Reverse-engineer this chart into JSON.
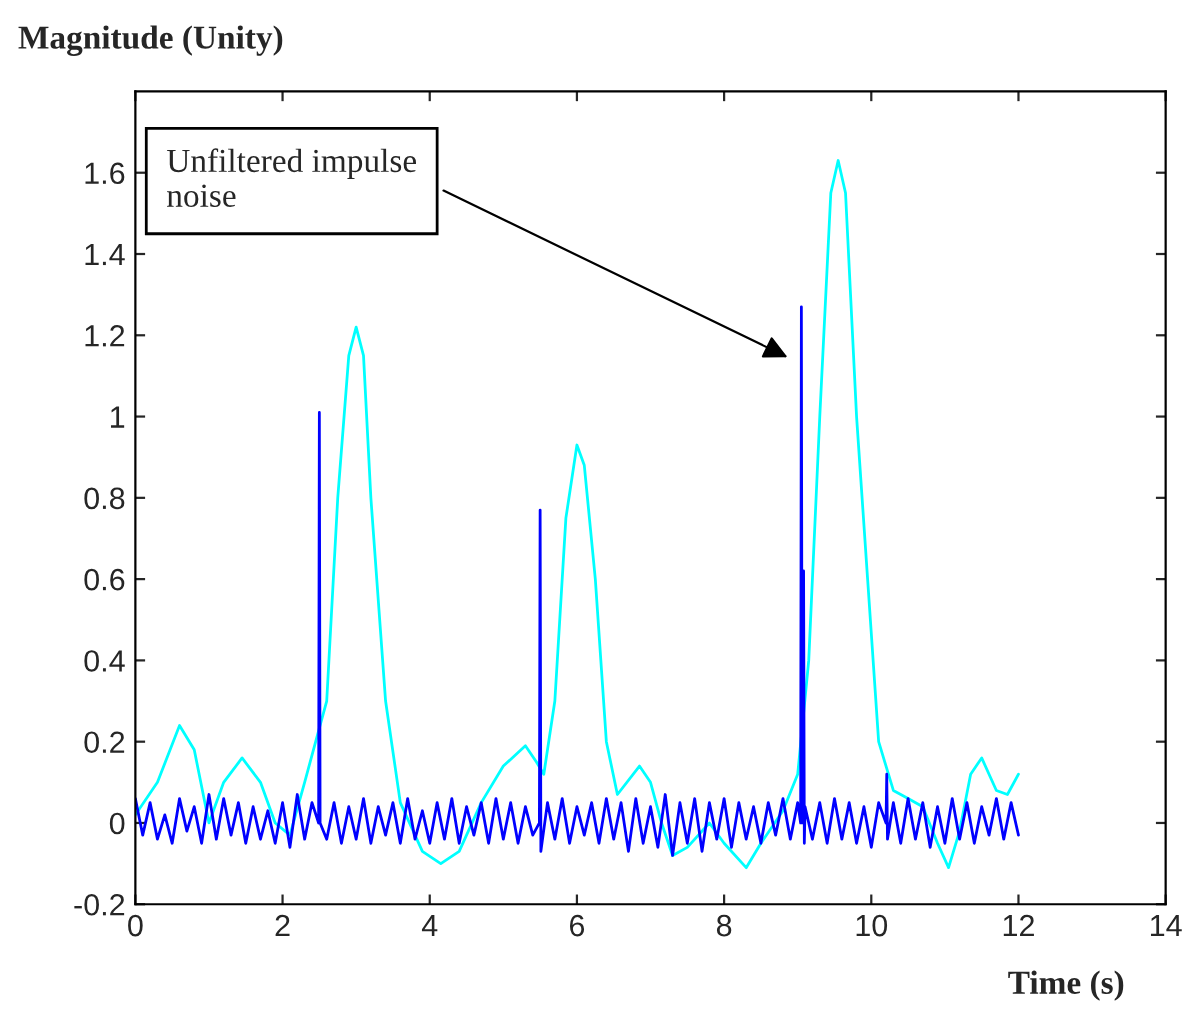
{
  "chart_data": {
    "type": "line",
    "xlabel": "Time (s)",
    "ylabel": "Magnitude (Unity)",
    "xlim": [
      0,
      14
    ],
    "ylim": [
      -0.2,
      1.8
    ],
    "xticks": [
      0,
      2,
      4,
      6,
      8,
      10,
      12,
      14
    ],
    "yticks": [
      -0.2,
      0,
      0.2,
      0.4,
      0.6,
      0.8,
      1,
      1.2,
      1.4,
      1.6
    ],
    "grid": false,
    "legend": false,
    "marker": "none",
    "line_style": "solid",
    "annotations": [
      {
        "text": "Unfiltered impulse\nnoise",
        "x": 8.93,
        "y": 1.14
      }
    ],
    "series": [
      {
        "color": "#00ffff",
        "x": [
          0,
          0.3,
          0.6,
          0.8,
          1.0,
          1.2,
          1.45,
          1.7,
          1.9,
          2.1,
          2.3,
          2.45,
          2.6,
          2.75,
          2.9,
          3.0,
          3.1,
          3.2,
          3.4,
          3.6,
          3.9,
          4.15,
          4.4,
          4.7,
          5.0,
          5.3,
          5.45,
          5.55,
          5.7,
          5.85,
          6.0,
          6.1,
          6.25,
          6.4,
          6.55,
          6.85,
          7.0,
          7.15,
          7.3,
          7.5,
          7.8,
          8.0,
          8.3,
          8.5,
          8.8,
          9.0,
          9.15,
          9.3,
          9.45,
          9.55,
          9.65,
          9.8,
          9.95,
          10.1,
          10.3,
          10.5,
          10.7,
          10.9,
          11.05,
          11.2,
          11.35,
          11.5,
          11.7,
          11.85,
          12.0
        ],
        "values": [
          0.02,
          0.1,
          0.24,
          0.18,
          0.0,
          0.1,
          0.16,
          0.1,
          0.0,
          -0.03,
          0.1,
          0.2,
          0.3,
          0.8,
          1.15,
          1.22,
          1.15,
          0.8,
          0.3,
          0.05,
          -0.07,
          -0.1,
          -0.07,
          0.05,
          0.14,
          0.19,
          0.15,
          0.12,
          0.3,
          0.75,
          0.93,
          0.88,
          0.6,
          0.2,
          0.07,
          0.14,
          0.1,
          0.0,
          -0.08,
          -0.06,
          0.0,
          -0.05,
          -0.11,
          -0.05,
          0.03,
          0.12,
          0.4,
          1.0,
          1.55,
          1.63,
          1.55,
          1.0,
          0.6,
          0.2,
          0.08,
          0.06,
          0.04,
          -0.05,
          -0.11,
          -0.02,
          0.12,
          0.16,
          0.08,
          0.07,
          0.12
        ]
      },
      {
        "color": "#0000ff",
        "x": [
          0,
          0.1,
          0.2,
          0.3,
          0.4,
          0.5,
          0.6,
          0.7,
          0.8,
          0.9,
          1.0,
          1.1,
          1.2,
          1.3,
          1.4,
          1.5,
          1.6,
          1.7,
          1.8,
          1.9,
          2.0,
          2.1,
          2.2,
          2.3,
          2.4,
          2.49,
          2.5,
          2.51,
          2.6,
          2.7,
          2.8,
          2.9,
          3.0,
          3.1,
          3.2,
          3.3,
          3.4,
          3.5,
          3.6,
          3.7,
          3.8,
          3.9,
          4.0,
          4.1,
          4.2,
          4.3,
          4.4,
          4.5,
          4.6,
          4.7,
          4.8,
          4.9,
          5.0,
          5.1,
          5.2,
          5.3,
          5.4,
          5.49,
          5.5,
          5.51,
          5.6,
          5.7,
          5.8,
          5.9,
          6.0,
          6.1,
          6.2,
          6.3,
          6.4,
          6.5,
          6.6,
          6.7,
          6.8,
          6.9,
          7.0,
          7.1,
          7.2,
          7.3,
          7.4,
          7.5,
          7.6,
          7.7,
          7.8,
          7.9,
          8.0,
          8.1,
          8.2,
          8.3,
          8.4,
          8.5,
          8.6,
          8.7,
          8.8,
          8.9,
          9.0,
          9.04,
          9.05,
          9.06,
          9.08,
          9.09,
          9.1,
          9.2,
          9.3,
          9.4,
          9.5,
          9.6,
          9.7,
          9.8,
          9.9,
          10.0,
          10.1,
          10.2,
          10.21,
          10.22,
          10.3,
          10.4,
          10.5,
          10.6,
          10.7,
          10.8,
          10.9,
          11.0,
          11.1,
          11.2,
          11.3,
          11.4,
          11.5,
          11.6,
          11.7,
          11.8,
          11.9,
          12.0
        ],
        "values": [
          0.06,
          -0.03,
          0.05,
          -0.04,
          0.02,
          -0.05,
          0.06,
          -0.02,
          0.04,
          -0.05,
          0.07,
          -0.04,
          0.06,
          -0.03,
          0.05,
          -0.05,
          0.04,
          -0.04,
          0.03,
          -0.05,
          0.05,
          -0.06,
          0.07,
          -0.04,
          0.05,
          0.0,
          1.01,
          0.0,
          -0.04,
          0.05,
          -0.05,
          0.04,
          -0.04,
          0.06,
          -0.05,
          0.04,
          -0.03,
          0.05,
          -0.05,
          0.06,
          -0.04,
          0.03,
          -0.05,
          0.05,
          -0.04,
          0.06,
          -0.05,
          0.04,
          -0.03,
          0.05,
          -0.05,
          0.06,
          -0.04,
          0.05,
          -0.05,
          0.04,
          -0.03,
          0.0,
          0.77,
          -0.07,
          0.05,
          -0.04,
          0.06,
          -0.05,
          0.04,
          -0.03,
          0.05,
          -0.05,
          0.06,
          -0.04,
          0.05,
          -0.07,
          0.06,
          -0.05,
          0.04,
          -0.06,
          0.07,
          -0.08,
          0.05,
          -0.05,
          0.06,
          -0.07,
          0.05,
          -0.04,
          0.06,
          -0.06,
          0.05,
          -0.04,
          0.04,
          -0.05,
          0.05,
          -0.03,
          0.06,
          -0.04,
          0.05,
          0.0,
          1.27,
          0.0,
          0.62,
          -0.05,
          0.04,
          -0.04,
          0.05,
          -0.05,
          0.06,
          -0.04,
          0.05,
          -0.05,
          0.04,
          -0.06,
          0.05,
          0.0,
          0.12,
          -0.04,
          0.05,
          -0.05,
          0.06,
          -0.04,
          0.05,
          -0.06,
          0.04,
          -0.05,
          0.06,
          -0.04,
          0.05,
          -0.05,
          0.04,
          -0.03,
          0.06,
          -0.04,
          0.05,
          -0.03
        ]
      }
    ]
  }
}
